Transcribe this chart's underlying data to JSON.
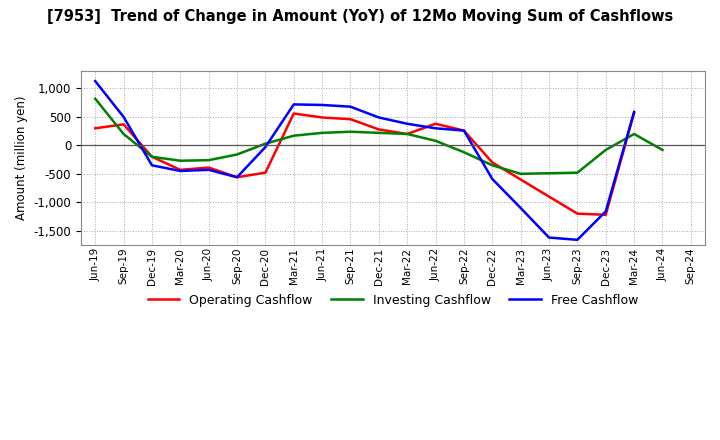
{
  "title": "[7953]  Trend of Change in Amount (YoY) of 12Mo Moving Sum of Cashflows",
  "ylabel": "Amount (million yen)",
  "x_labels": [
    "Jun-19",
    "Sep-19",
    "Dec-19",
    "Mar-20",
    "Jun-20",
    "Sep-20",
    "Dec-20",
    "Mar-21",
    "Jun-21",
    "Sep-21",
    "Dec-21",
    "Mar-22",
    "Jun-22",
    "Sep-22",
    "Dec-22",
    "Mar-23",
    "Jun-23",
    "Sep-23",
    "Dec-23",
    "Mar-24",
    "Jun-24",
    "Sep-24"
  ],
  "operating": [
    300,
    370,
    -200,
    -430,
    -390,
    -560,
    -480,
    560,
    490,
    460,
    280,
    200,
    380,
    260,
    -300,
    -600,
    -900,
    -1200,
    -1220,
    570,
    null,
    null
  ],
  "investing": [
    820,
    200,
    -200,
    -270,
    -260,
    -160,
    30,
    170,
    220,
    240,
    220,
    200,
    80,
    -120,
    -350,
    -500,
    -490,
    -480,
    -80,
    200,
    -80,
    null
  ],
  "free": [
    1130,
    500,
    -350,
    -450,
    -430,
    -560,
    -30,
    720,
    710,
    680,
    490,
    380,
    300,
    260,
    -590,
    -1100,
    -1620,
    -1660,
    -1160,
    590,
    null,
    null
  ],
  "operating_color": "#ff0000",
  "investing_color": "#008000",
  "free_color": "#0000ff",
  "ylim": [
    -1750,
    1300
  ],
  "yticks": [
    -1500,
    -1000,
    -500,
    0,
    500,
    1000
  ],
  "background_color": "#ffffff",
  "grid_color": "#aaaaaa"
}
